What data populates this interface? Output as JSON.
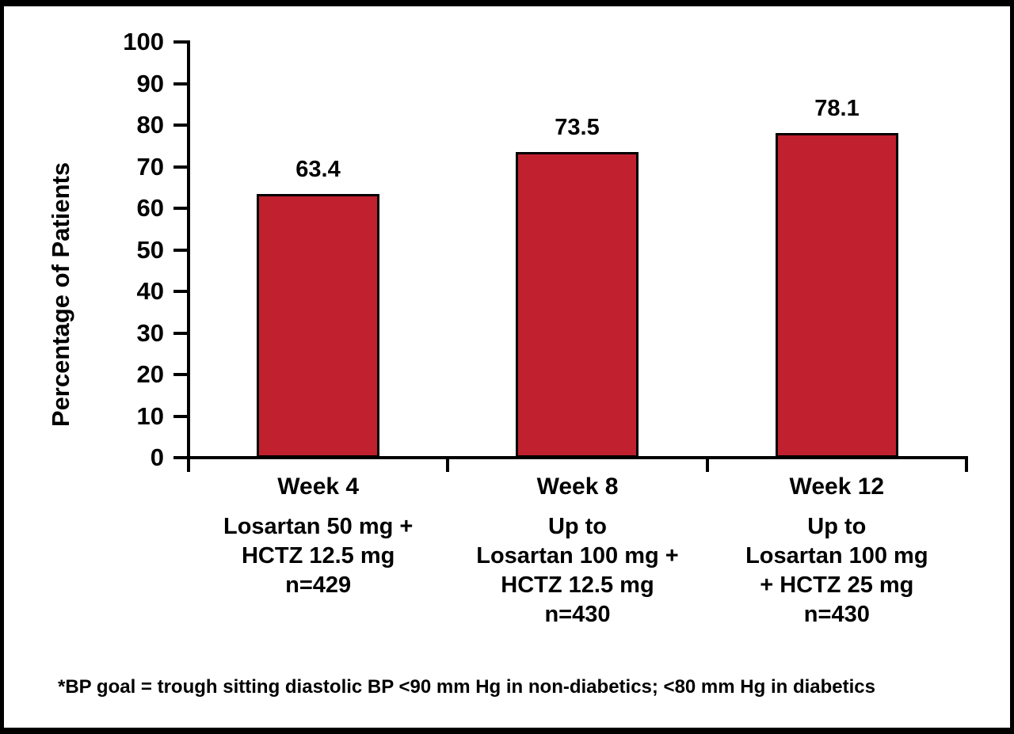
{
  "page": {
    "background": "#ffffff",
    "border_color": "#000000"
  },
  "chart_data": {
    "type": "bar",
    "title": "",
    "ylabel": "Percentage of Patients",
    "xlabel": "",
    "ylim": [
      0,
      100
    ],
    "ytick_step": 10,
    "grid": false,
    "legend": "none",
    "bar_color": "#C1202F",
    "bar_border_color": "#000000",
    "categories": [
      "Week 4",
      "Week 8",
      "Week 12"
    ],
    "values": [
      63.4,
      73.5,
      78.1
    ],
    "value_labels": [
      "63.4",
      "73.5",
      "78.1"
    ],
    "category_sublabels": [
      [
        "Losartan 50 mg +",
        "HCTZ 12.5 mg",
        "n=429"
      ],
      [
        "Up to",
        "Losartan 100 mg +",
        "HCTZ 12.5 mg",
        "n=430"
      ],
      [
        "Up to",
        "Losartan 100 mg",
        "+ HCTZ 25 mg",
        "n=430"
      ]
    ],
    "footnote": "*BP goal = trough sitting diastolic BP <90 mm Hg in non-diabetics; <80 mm Hg in diabetics"
  }
}
